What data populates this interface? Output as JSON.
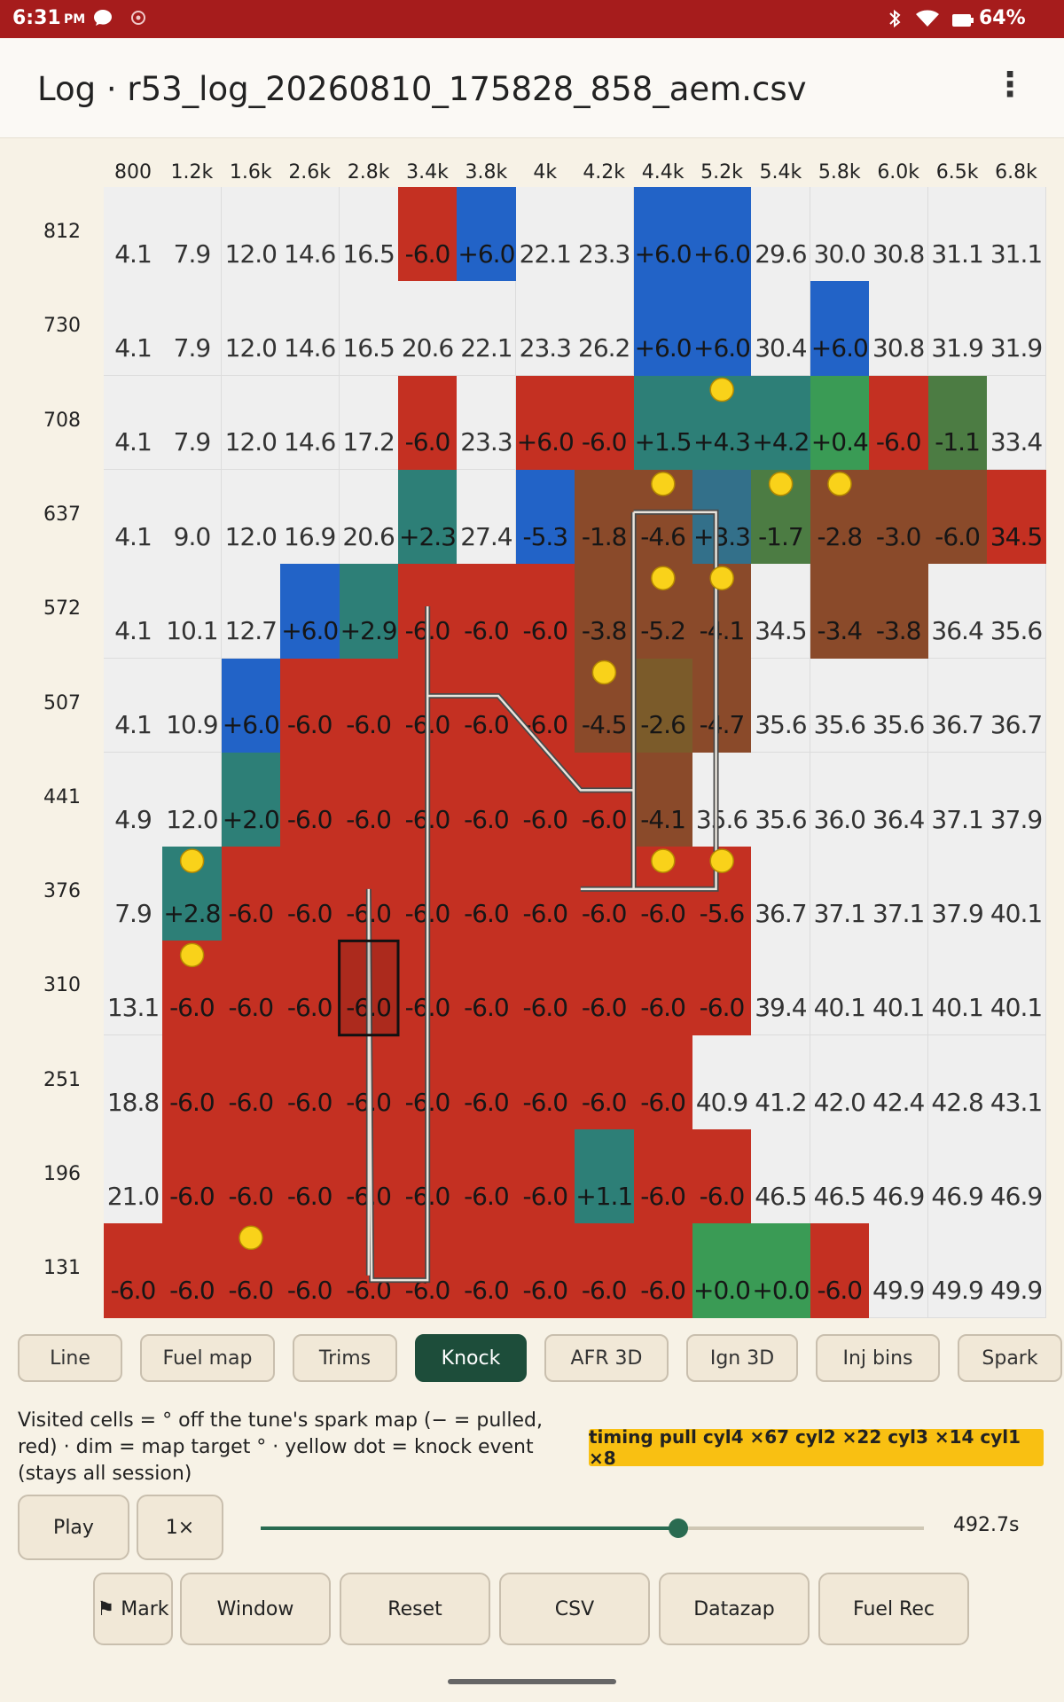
{
  "status_bar": {
    "time": "6:31",
    "ampm": "PM",
    "battery": "64%",
    "icons": [
      "chat-bubble-icon",
      "circle-icon",
      "bluetooth-icon",
      "wifi-icon",
      "battery-icon"
    ]
  },
  "app_bar": {
    "title": "Log · r53_log_20260810_175828_858_aem.csv",
    "menu_icon": "more-vert-icon"
  },
  "heatmap": {
    "columns": [
      "800",
      "1.2k",
      "1.6k",
      "2.6k",
      "2.8k",
      "3.4k",
      "3.8k",
      "4k",
      "4.2k",
      "4.4k",
      "5.2k",
      "5.4k",
      "5.8k",
      "6.0k",
      "6.5k",
      "6.8k"
    ],
    "rows": [
      "812",
      "730",
      "708",
      "637",
      "572",
      "507",
      "441",
      "376",
      "310",
      "251",
      "196",
      "131"
    ],
    "values": [
      [
        "4.1",
        "7.9",
        "12.0",
        "14.6",
        "16.5",
        "-6.0",
        "+6.0",
        "22.1",
        "23.3",
        "+6.0",
        "+6.0",
        "29.6",
        "30.0",
        "30.8",
        "31.1",
        "31.1"
      ],
      [
        "4.1",
        "7.9",
        "12.0",
        "14.6",
        "16.5",
        "20.6",
        "22.1",
        "23.3",
        "26.2",
        "+6.0",
        "+6.0",
        "30.4",
        "+6.0",
        "30.8",
        "31.9",
        "31.9"
      ],
      [
        "4.1",
        "7.9",
        "12.0",
        "14.6",
        "17.2",
        "-6.0",
        "23.3",
        "+6.0",
        "-6.0",
        "+1.5",
        "+4.3",
        "+4.2",
        "+0.4",
        "-6.0",
        "-1.1",
        "33.4"
      ],
      [
        "4.1",
        "9.0",
        "12.0",
        "16.9",
        "20.6",
        "+2.3",
        "27.4",
        "-5.3",
        "-1.8",
        "-4.6",
        "+3.3",
        "-1.7",
        "-2.8",
        "-3.0",
        "-6.0",
        "34.5"
      ],
      [
        "4.1",
        "10.1",
        "12.7",
        "+6.0",
        "+2.9",
        "-6.0",
        "-6.0",
        "-6.0",
        "-3.8",
        "-5.2",
        "-4.1",
        "34.5",
        "-3.4",
        "-3.8",
        "36.4",
        "35.6"
      ],
      [
        "4.1",
        "10.9",
        "+6.0",
        "-6.0",
        "-6.0",
        "-6.0",
        "-6.0",
        "-6.0",
        "-4.5",
        "-2.6",
        "-4.7",
        "35.6",
        "35.6",
        "35.6",
        "36.7",
        "36.7"
      ],
      [
        "4.9",
        "12.0",
        "+2.0",
        "-6.0",
        "-6.0",
        "-6.0",
        "-6.0",
        "-6.0",
        "-6.0",
        "-4.1",
        "35.6",
        "35.6",
        "36.0",
        "36.4",
        "37.1",
        "37.9"
      ],
      [
        "7.9",
        "+2.8",
        "-6.0",
        "-6.0",
        "-6.0",
        "-6.0",
        "-6.0",
        "-6.0",
        "-6.0",
        "-6.0",
        "-5.6",
        "36.7",
        "37.1",
        "37.1",
        "37.9",
        "40.1"
      ],
      [
        "13.1",
        "-6.0",
        "-6.0",
        "-6.0",
        "-6.0",
        "-6.0",
        "-6.0",
        "-6.0",
        "-6.0",
        "-6.0",
        "-6.0",
        "39.4",
        "40.1",
        "40.1",
        "40.1",
        "40.1"
      ],
      [
        "18.8",
        "-6.0",
        "-6.0",
        "-6.0",
        "-6.0",
        "-6.0",
        "-6.0",
        "-6.0",
        "-6.0",
        "-6.0",
        "40.9",
        "41.2",
        "42.0",
        "42.4",
        "42.8",
        "43.1"
      ],
      [
        "21.0",
        "-6.0",
        "-6.0",
        "-6.0",
        "-6.0",
        "-6.0",
        "-6.0",
        "-6.0",
        "+1.1",
        "-6.0",
        "-6.0",
        "46.5",
        "46.5",
        "46.9",
        "46.9",
        "46.9"
      ],
      [
        "-6.0",
        "-6.0",
        "-6.0",
        "-6.0",
        "-6.0",
        "-6.0",
        "-6.0",
        "-6.0",
        "-6.0",
        "-6.0",
        "+0.0",
        "+0.0",
        "-6.0",
        "49.9",
        "49.9",
        "49.9"
      ]
    ],
    "cell_kinds": [
      "EEEEERBEEBBEEEEE",
      "EEEEEEEEEBBEBEEE",
      "EEEEERERRTTTGRgE",
      "EEEEETEBOOCgOOOR",
      "EEEBTRRROOOEOOEE",
      "EEBRRRRROkOEEEEE",
      "EETRRRRRROEEEEEE",
      "ETRRRRRRRRREEEEE",
      "ERRRRRRRRRREEEEE",
      "ERRRRRRRRREEEEEE",
      "ERRRRRRRTRREEEEE",
      "RRRRRRRRRRGGREEE"
    ],
    "palette": {
      "E": "#efefef",
      "R": "#c43022",
      "B": "#2263c7",
      "T": "#2d7f77",
      "G": "#3a9b55",
      "g": "#4c7c43",
      "O": "#8a4a2a",
      "k": "#7b5b2a",
      "C": "#33708a"
    },
    "knock_events": [
      [
        2,
        10
      ],
      [
        3,
        9
      ],
      [
        3,
        11
      ],
      [
        3,
        12
      ],
      [
        4,
        9
      ],
      [
        4,
        10
      ],
      [
        5,
        8
      ],
      [
        7,
        9
      ],
      [
        7,
        10
      ],
      [
        7,
        1
      ],
      [
        8,
        1
      ],
      [
        11,
        2
      ]
    ],
    "selected_cell": [
      8,
      4
    ],
    "colors": {
      "knock_dot": "#f9d21a",
      "trace": "#e9e4dc",
      "selection": "#111111"
    }
  },
  "tabs": [
    "Line",
    "Fuel map",
    "Trims",
    "Knock",
    "AFR 3D",
    "Ign 3D",
    "Inj bins",
    "Spark",
    ""
  ],
  "active_tab": "Knock",
  "legend": {
    "text": "Visited cells = ° off the tune's spark map (− = pulled, red) · dim = map target ° · yellow dot = knock event (stays all session)",
    "badge": "timing pull cyl4 ×67  cyl2 ×22  cyl3 ×14  cyl1 ×8"
  },
  "playback": {
    "play_label": "Play",
    "speed_label": "1×",
    "position": 0.63,
    "time": "492.7s"
  },
  "toolbar": {
    "mark_label": "⚑ Mark",
    "window_label": "Window",
    "reset_label": "Reset",
    "csv_label": "CSV",
    "datazap_label": "Datazap",
    "fuelrec_label": "Fuel Rec"
  }
}
